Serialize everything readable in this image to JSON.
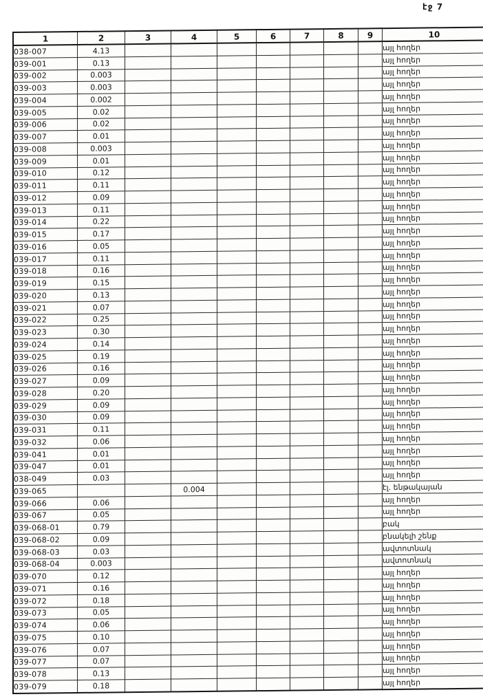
{
  "page": {
    "number_label": "էջ 7",
    "margin_note": "40"
  },
  "colors": {
    "ink": "#161616",
    "paper": "#fdfdfc"
  },
  "table": {
    "columns": [
      "1",
      "2",
      "3",
      "4",
      "5",
      "6",
      "7",
      "8",
      "9",
      "10"
    ],
    "rows": [
      {
        "code": "038-007",
        "value": "4.13",
        "label": "այլ հողեր"
      },
      {
        "code": "039-001",
        "value": "0.13",
        "label": "այլ հողեր"
      },
      {
        "code": "039-002",
        "value": "0.003",
        "label": "այլ հողեր"
      },
      {
        "code": "039-003",
        "value": "0.003",
        "label": "այլ հողեր"
      },
      {
        "code": "039-004",
        "value": "0.002",
        "label": "այլ հողեր"
      },
      {
        "code": "039-005",
        "value": "0.02",
        "label": "այլ հողեր"
      },
      {
        "code": "039-006",
        "value": "0.02",
        "label": "այլ հողեր"
      },
      {
        "code": "039-007",
        "value": "0.01",
        "label": "այլ հողեր"
      },
      {
        "code": "039-008",
        "value": "0.003",
        "label": "այլ հողեր"
      },
      {
        "code": "039-009",
        "value": "0.01",
        "label": "այլ հողեր"
      },
      {
        "code": "039-010",
        "value": "0.12",
        "label": "այլ հողեր"
      },
      {
        "code": "039-011",
        "value": "0.11",
        "label": "այլ հողեր"
      },
      {
        "code": "039-012",
        "value": "0.09",
        "label": "այլ հողեր"
      },
      {
        "code": "039-013",
        "value": "0.11",
        "label": "այլ հողեր"
      },
      {
        "code": "039-014",
        "value": "0.22",
        "label": "այլ հողեր"
      },
      {
        "code": "039-015",
        "value": "0.17",
        "label": "այլ հողեր"
      },
      {
        "code": "039-016",
        "value": "0.05",
        "label": "այլ հողեր"
      },
      {
        "code": "039-017",
        "value": "0.11",
        "label": "այլ հողեր"
      },
      {
        "code": "039-018",
        "value": "0.16",
        "label": "այլ հողեր"
      },
      {
        "code": "039-019",
        "value": "0.15",
        "label": "այլ հողեր"
      },
      {
        "code": "039-020",
        "value": "0.13",
        "label": "այլ հողեր"
      },
      {
        "code": "039-021",
        "value": "0.07",
        "label": "այլ հողեր"
      },
      {
        "code": "039-022",
        "value": "0.25",
        "label": "այլ հողեր"
      },
      {
        "code": "039-023",
        "value": "0.30",
        "label": "այլ հողեր"
      },
      {
        "code": "039-024",
        "value": "0.14",
        "label": "այլ հողեր"
      },
      {
        "code": "039-025",
        "value": "0.19",
        "label": "այլ հողեր"
      },
      {
        "code": "039-026",
        "value": "0.16",
        "label": "այլ հողեր"
      },
      {
        "code": "039-027",
        "value": "0.09",
        "label": "այլ հողեր"
      },
      {
        "code": "039-028",
        "value": "0.20",
        "label": "այլ հողեր"
      },
      {
        "code": "039-029",
        "value": "0.09",
        "label": "այլ հողեր"
      },
      {
        "code": "039-030",
        "value": "0.09",
        "label": "այլ հողեր"
      },
      {
        "code": "039-031",
        "value": "0.11",
        "label": "այլ հողեր"
      },
      {
        "code": "039-032",
        "value": "0.06",
        "label": "այլ հողեր"
      },
      {
        "code": "039-041",
        "value": "0.01",
        "label": "այլ հողեր"
      },
      {
        "code": "039-047",
        "value": "0.01",
        "label": "այլ հողեր"
      },
      {
        "code": "038-049",
        "value": "0.03",
        "label": "այլ հողեր"
      },
      {
        "code": "039-065",
        "value": "",
        "c4": "0.004",
        "label": "էլ. ենթակայան"
      },
      {
        "code": "039-066",
        "value": "0.06",
        "label": "այլ հողեր"
      },
      {
        "code": "039-067",
        "value": "0.05",
        "label": "այլ հողեր"
      },
      {
        "code": "039-068-01",
        "value": "0.79",
        "label": "բակ"
      },
      {
        "code": "039-068-02",
        "value": "0.09",
        "label": "բնակելի շենք"
      },
      {
        "code": "039-068-03",
        "value": "0.03",
        "label": "ավտոտնակ"
      },
      {
        "code": "039-068-04",
        "value": "0.003",
        "label": "ավտոտնակ"
      },
      {
        "code": "039-070",
        "value": "0.12",
        "label": "այլ հողեր"
      },
      {
        "code": "039-071",
        "value": "0.16",
        "label": "այլ հողեր"
      },
      {
        "code": "039-072",
        "value": "0.18",
        "label": "այլ հողեր"
      },
      {
        "code": "039-073",
        "value": "0.05",
        "label": "այլ հողեր"
      },
      {
        "code": "039-074",
        "value": "0.06",
        "label": "այլ հողեր"
      },
      {
        "code": "039-075",
        "value": "0.10",
        "label": "այլ հողեր"
      },
      {
        "code": "039-076",
        "value": "0.07",
        "label": "այլ հողեր"
      },
      {
        "code": "039-077",
        "value": "0.07",
        "label": "այլ հողեր"
      },
      {
        "code": "039-078",
        "value": "0.13",
        "label": "այլ հողեր"
      },
      {
        "code": "039-079",
        "value": "0.18",
        "label": "այլ հողեր"
      }
    ]
  }
}
